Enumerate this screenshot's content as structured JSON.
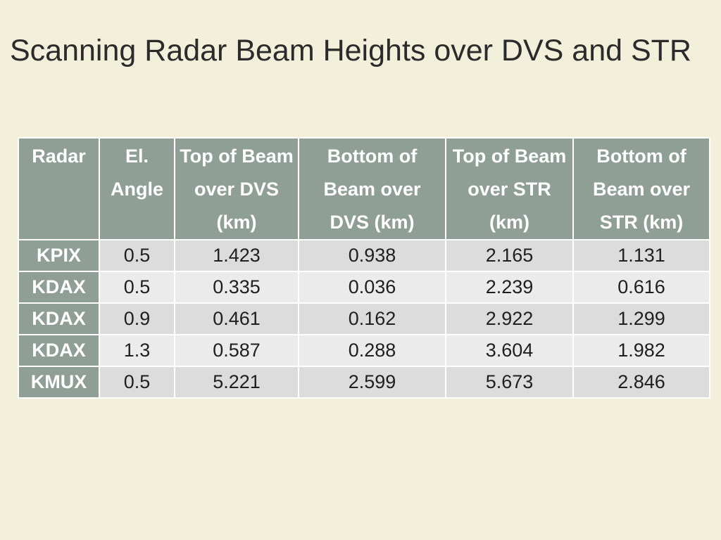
{
  "title": "Scanning Radar Beam Heights over DVS and STR",
  "table": {
    "headers": [
      "Radar",
      "El. Angle",
      "Top of Beam over DVS (km)",
      "Bottom of Beam over DVS (km)",
      "Top of Beam over STR (km)",
      "Bottom of Beam over STR (km)"
    ],
    "rows": [
      [
        "KPIX",
        "0.5",
        "1.423",
        "0.938",
        "2.165",
        "1.131"
      ],
      [
        "KDAX",
        "0.5",
        "0.335",
        "0.036",
        "2.239",
        "0.616"
      ],
      [
        "KDAX",
        "0.9",
        "0.461",
        "0.162",
        "2.922",
        "1.299"
      ],
      [
        "KDAX",
        "1.3",
        "0.587",
        "0.288",
        "3.604",
        "1.982"
      ],
      [
        "KMUX",
        "0.5",
        "5.221",
        "2.599",
        "5.673",
        "2.846"
      ]
    ]
  },
  "colors": {
    "background": "#f2efdb",
    "header": "#8f9f96",
    "row_dark": "#dcdcdc",
    "row_light": "#ebebeb"
  }
}
